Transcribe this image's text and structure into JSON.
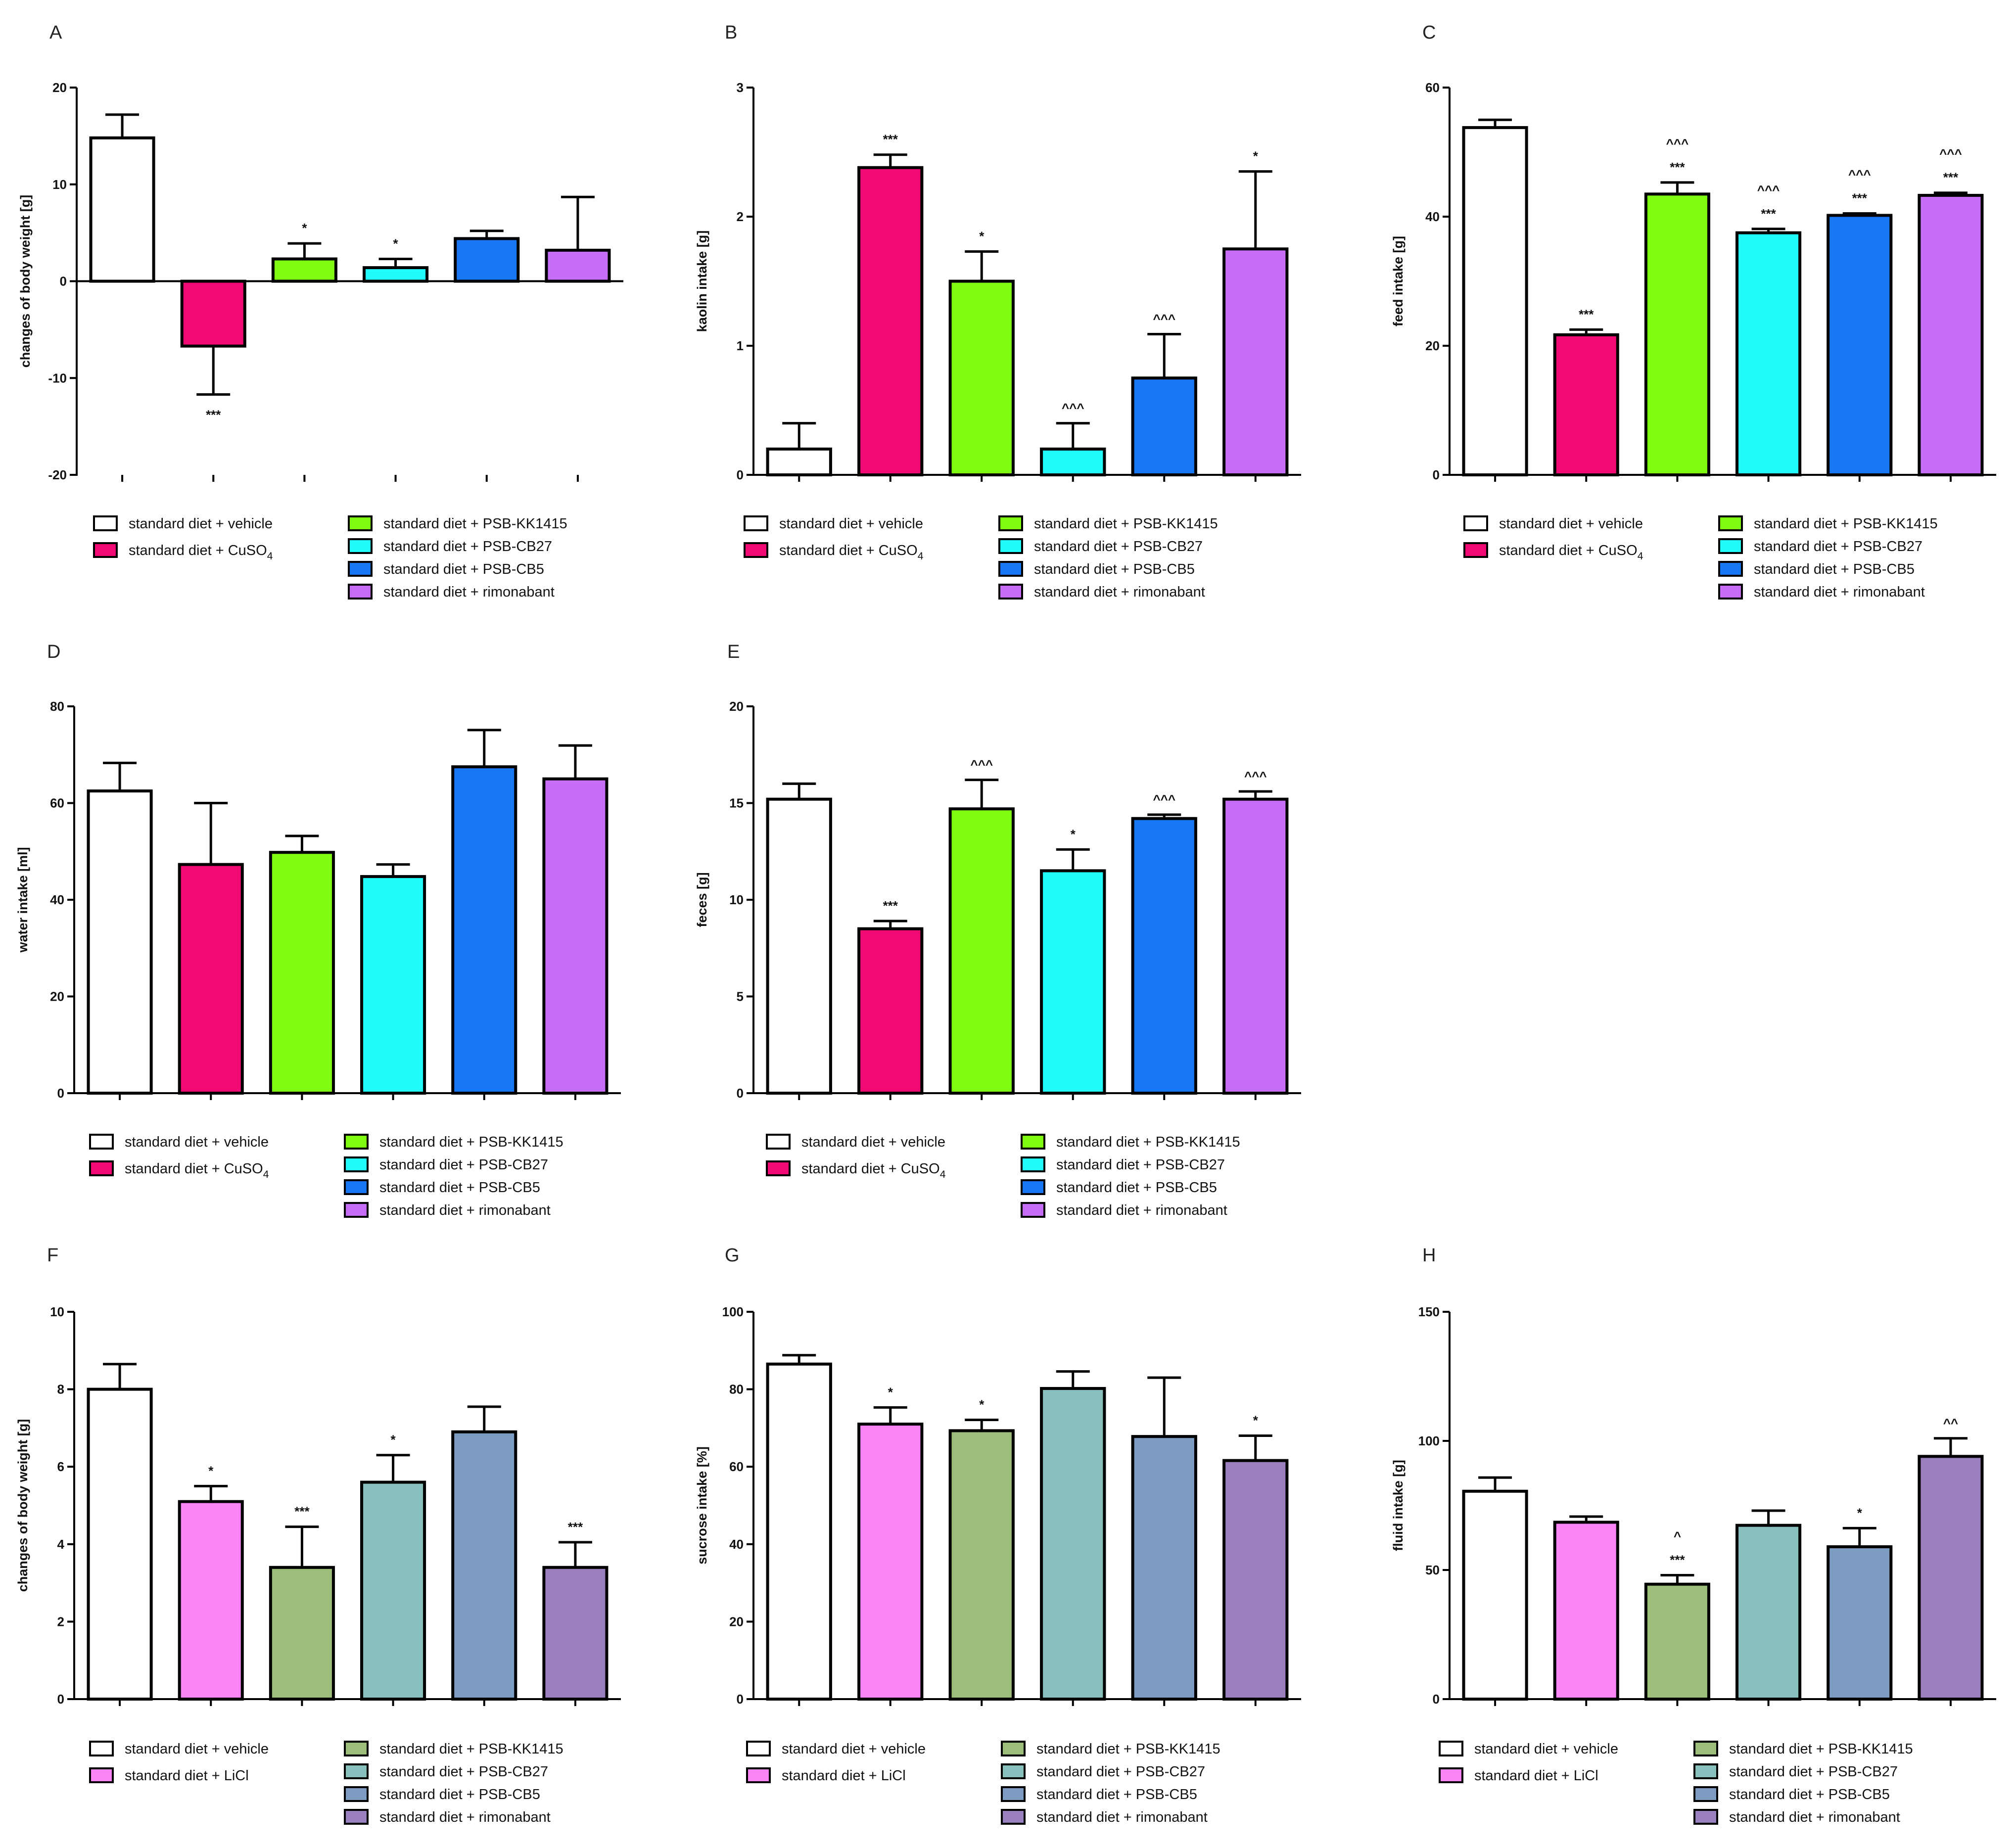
{
  "colors": {
    "vehicle": "#ffffff",
    "cuso4": "#f10a73",
    "kk1415": "#80fb12",
    "cb27": "#22fbfb",
    "cb5": "#1877f5",
    "rimonabant": "#c66ef7",
    "licl": "#fb84f7",
    "kk1415_muted": "#9dbd7b",
    "cb27_muted": "#89bfbd",
    "cb5_muted": "#7c9cc1",
    "rimonabant_muted": "#9a7fbd"
  },
  "chart_data": [
    {
      "panel": "A",
      "type": "bar",
      "ylabel": "changes of body weight  [g]",
      "ylim": [
        -20,
        20
      ],
      "yticks": [
        -20,
        -10,
        0,
        10,
        20
      ],
      "tick_labels": [
        "-20",
        "-10",
        "0",
        "10",
        "20"
      ],
      "categories": [
        "standard diet + vehicle",
        "standard diet + CuSO4",
        "standard diet + PSB-KK1415",
        "standard diet + PSB-CB27",
        "standard diet + PSB-CB5",
        "standard diet + rimonabant"
      ],
      "values": [
        14.8,
        -6.7,
        2.3,
        1.4,
        4.4,
        3.2
      ],
      "errors": [
        2.4,
        5.0,
        1.6,
        0.9,
        0.8,
        5.5
      ],
      "colors": [
        "vehicle",
        "cuso4",
        "kk1415",
        "cb27",
        "cb5",
        "rimonabant"
      ],
      "annotations": [
        [],
        [
          "***"
        ],
        [
          "*"
        ],
        [
          "*"
        ],
        [],
        []
      ],
      "legend": {
        "left": [
          {
            "text": "standard diet + vehicle",
            "color": "vehicle"
          },
          {
            "text": "standard diet + CuSO",
            "sub": "4",
            "color": "cuso4"
          }
        ],
        "right": [
          {
            "text": "standard diet + PSB-KK1415",
            "color": "kk1415"
          },
          {
            "text": "standard diet + PSB-CB27",
            "color": "cb27"
          },
          {
            "text": "standard diet + PSB-CB5",
            "color": "cb5"
          },
          {
            "text": "standard diet + rimonabant",
            "color": "rimonabant"
          }
        ]
      }
    },
    {
      "panel": "B",
      "type": "bar",
      "ylabel": "kaolin intake [g]",
      "ylim": [
        0,
        3
      ],
      "yticks": [
        0,
        1,
        2,
        3
      ],
      "tick_labels": [
        "0",
        "1",
        "2",
        "3"
      ],
      "categories": [
        "standard diet + vehicle",
        "standard diet + CuSO4",
        "standard diet + PSB-KK1415",
        "standard diet + PSB-CB27",
        "standard diet + PSB-CB5",
        "standard diet + rimonabant"
      ],
      "values": [
        0.2,
        2.38,
        1.5,
        0.2,
        0.75,
        1.75
      ],
      "errors": [
        0.2,
        0.1,
        0.23,
        0.2,
        0.34,
        0.6
      ],
      "colors": [
        "vehicle",
        "cuso4",
        "kk1415",
        "cb27",
        "cb5",
        "rimonabant"
      ],
      "annotations": [
        [],
        [
          "***"
        ],
        [
          "*"
        ],
        [
          "^^^"
        ],
        [
          "^^^"
        ],
        [
          "*"
        ]
      ],
      "legend": {
        "left": [
          {
            "text": "standard diet + vehicle",
            "color": "vehicle"
          },
          {
            "text": "standard diet + CuSO",
            "sub": "4",
            "color": "cuso4"
          }
        ],
        "right": [
          {
            "text": "standard diet + PSB-KK1415",
            "color": "kk1415"
          },
          {
            "text": "standard diet + PSB-CB27",
            "color": "cb27"
          },
          {
            "text": "standard diet + PSB-CB5",
            "color": "cb5"
          },
          {
            "text": "standard diet + rimonabant",
            "color": "rimonabant"
          }
        ]
      }
    },
    {
      "panel": "C",
      "type": "bar",
      "ylabel": "feed intake [g]",
      "ylim": [
        0,
        60
      ],
      "yticks": [
        0,
        20,
        40,
        60
      ],
      "tick_labels": [
        "0",
        "20",
        "40",
        "60"
      ],
      "categories": [
        "standard diet + vehicle",
        "standard diet + CuSO4",
        "standard diet + PSB-KK1415",
        "standard diet + PSB-CB27",
        "standard diet + PSB-CB5",
        "standard diet + rimonabant"
      ],
      "values": [
        53.8,
        21.7,
        43.5,
        37.5,
        40.2,
        43.3
      ],
      "errors": [
        1.2,
        0.8,
        1.8,
        0.6,
        0.3,
        0.4
      ],
      "colors": [
        "vehicle",
        "cuso4",
        "kk1415",
        "cb27",
        "cb5",
        "rimonabant"
      ],
      "annotations": [
        [],
        [
          "***"
        ],
        [
          "***",
          "^^^"
        ],
        [
          "***",
          "^^^"
        ],
        [
          "***",
          "^^^"
        ],
        [
          "***",
          "^^^"
        ]
      ],
      "legend": {
        "left": [
          {
            "text": "standard diet + vehicle",
            "color": "vehicle"
          },
          {
            "text": "standard diet + CuSO",
            "sub": "4",
            "color": "cuso4"
          }
        ],
        "right": [
          {
            "text": "standard diet + PSB-KK1415",
            "color": "kk1415"
          },
          {
            "text": "standard diet + PSB-CB27",
            "color": "cb27"
          },
          {
            "text": "standard diet + PSB-CB5",
            "color": "cb5"
          },
          {
            "text": "standard diet + rimonabant",
            "color": "rimonabant"
          }
        ]
      }
    },
    {
      "panel": "D",
      "type": "bar",
      "ylabel": "water intake [ml]",
      "ylim": [
        0,
        80
      ],
      "yticks": [
        0,
        20,
        40,
        60,
        80
      ],
      "tick_labels": [
        "0",
        "20",
        "40",
        "60",
        "80"
      ],
      "categories": [
        "standard diet + vehicle",
        "standard diet + CuSO4",
        "standard diet + PSB-KK1415",
        "standard diet + PSB-CB27",
        "standard diet + PSB-CB5",
        "standard diet + rimonabant"
      ],
      "values": [
        62.5,
        47.3,
        49.8,
        44.8,
        67.5,
        65
      ],
      "errors": [
        5.8,
        12.7,
        3.4,
        2.5,
        7.6,
        6.9
      ],
      "colors": [
        "vehicle",
        "cuso4",
        "kk1415",
        "cb27",
        "cb5",
        "rimonabant"
      ],
      "annotations": [
        [],
        [],
        [],
        [],
        [],
        []
      ],
      "legend": {
        "left": [
          {
            "text": "standard diet + vehicle",
            "color": "vehicle"
          },
          {
            "text": "standard diet + CuSO",
            "sub": "4",
            "color": "cuso4"
          }
        ],
        "right": [
          {
            "text": "standard diet + PSB-KK1415",
            "color": "kk1415"
          },
          {
            "text": "standard diet + PSB-CB27",
            "color": "cb27"
          },
          {
            "text": "standard diet + PSB-CB5",
            "color": "cb5"
          },
          {
            "text": "standard diet + rimonabant",
            "color": "rimonabant"
          }
        ]
      }
    },
    {
      "panel": "E",
      "type": "bar",
      "ylabel": "feces [g]",
      "ylim": [
        0,
        20
      ],
      "yticks": [
        0,
        5,
        10,
        15,
        20
      ],
      "tick_labels": [
        "0",
        "5",
        "10",
        "15",
        "20"
      ],
      "categories": [
        "standard diet + vehicle",
        "standard diet + CuSO4",
        "standard diet + PSB-KK1415",
        "standard diet + PSB-CB27",
        "standard diet + PSB-CB5",
        "standard diet + rimonabant"
      ],
      "values": [
        15.2,
        8.5,
        14.7,
        11.5,
        14.2,
        15.2
      ],
      "errors": [
        0.8,
        0.4,
        1.5,
        1.1,
        0.2,
        0.4
      ],
      "colors": [
        "vehicle",
        "cuso4",
        "kk1415",
        "cb27",
        "cb5",
        "rimonabant"
      ],
      "annotations": [
        [],
        [
          "***"
        ],
        [
          "^^^"
        ],
        [
          "*"
        ],
        [
          "^^^"
        ],
        [
          "^^^"
        ]
      ],
      "legend": {
        "left": [
          {
            "text": "standard diet + vehicle",
            "color": "vehicle"
          },
          {
            "text": "standard diet + CuSO",
            "sub": "4",
            "color": "cuso4"
          }
        ],
        "right": [
          {
            "text": "standard diet + PSB-KK1415",
            "color": "kk1415"
          },
          {
            "text": "standard diet + PSB-CB27",
            "color": "cb27"
          },
          {
            "text": "standard diet + PSB-CB5",
            "color": "cb5"
          },
          {
            "text": "standard diet + rimonabant",
            "color": "rimonabant"
          }
        ]
      }
    },
    {
      "panel": "F",
      "type": "bar",
      "ylabel": "changes of body weight  [g]",
      "ylim": [
        0,
        10
      ],
      "yticks": [
        0,
        2,
        4,
        6,
        8,
        10
      ],
      "tick_labels": [
        "0",
        "2",
        "4",
        "6",
        "8",
        "10"
      ],
      "categories": [
        "standard diet + vehicle",
        "standard diet + LiCl",
        "standard diet + PSB-KK1415",
        "standard diet + PSB-CB27",
        "standard diet + PSB-CB5",
        "standard diet + rimonabant"
      ],
      "values": [
        8.0,
        5.1,
        3.4,
        5.6,
        6.9,
        3.4
      ],
      "errors": [
        0.65,
        0.4,
        1.05,
        0.7,
        0.65,
        0.65
      ],
      "colors": [
        "vehicle",
        "licl",
        "kk1415_muted",
        "cb27_muted",
        "cb5_muted",
        "rimonabant_muted"
      ],
      "annotations": [
        [],
        [
          "*"
        ],
        [
          "***"
        ],
        [
          "*"
        ],
        [],
        [
          "***"
        ]
      ],
      "legend": {
        "left": [
          {
            "text": "standard diet + vehicle",
            "color": "vehicle"
          },
          {
            "text": "standard diet + LiCl",
            "color": "licl"
          }
        ],
        "right": [
          {
            "text": "standard diet + PSB-KK1415",
            "color": "kk1415_muted"
          },
          {
            "text": "standard diet + PSB-CB27",
            "color": "cb27_muted"
          },
          {
            "text": "standard diet + PSB-CB5",
            "color": "cb5_muted"
          },
          {
            "text": "standard diet + rimonabant",
            "color": "rimonabant_muted"
          }
        ]
      }
    },
    {
      "panel": "G",
      "type": "bar",
      "ylabel": "sucrose intake  [%]",
      "ylim": [
        0,
        100
      ],
      "yticks": [
        0,
        20,
        40,
        60,
        80,
        100
      ],
      "tick_labels": [
        "0",
        "20",
        "40",
        "60",
        "80",
        "100"
      ],
      "categories": [
        "standard diet + vehicle",
        "standard diet + LiCl",
        "standard diet + PSB-KK1415",
        "standard diet + PSB-CB27",
        "standard diet + PSB-CB5",
        "standard diet + rimonabant"
      ],
      "values": [
        86.5,
        71,
        69.3,
        80.2,
        67.8,
        61.6
      ],
      "errors": [
        2.3,
        4.3,
        2.8,
        4.4,
        15.2,
        6.4
      ],
      "colors": [
        "vehicle",
        "licl",
        "kk1415_muted",
        "cb27_muted",
        "cb5_muted",
        "rimonabant_muted"
      ],
      "annotations": [
        [],
        [
          "*"
        ],
        [
          "*"
        ],
        [],
        [],
        [
          "*"
        ]
      ],
      "legend": {
        "left": [
          {
            "text": "standard diet + vehicle",
            "color": "vehicle"
          },
          {
            "text": "standard diet + LiCl",
            "color": "licl"
          }
        ],
        "right": [
          {
            "text": "standard diet + PSB-KK1415",
            "color": "kk1415_muted"
          },
          {
            "text": "standard diet + PSB-CB27",
            "color": "cb27_muted"
          },
          {
            "text": "standard diet + PSB-CB5",
            "color": "cb5_muted"
          },
          {
            "text": "standard diet + rimonabant",
            "color": "rimonabant_muted"
          }
        ]
      }
    },
    {
      "panel": "H",
      "type": "bar",
      "ylabel": "fluid intake [g]",
      "ylim": [
        0,
        150
      ],
      "yticks": [
        0,
        50,
        100,
        150
      ],
      "tick_labels": [
        "0",
        "50",
        "100",
        "150"
      ],
      "categories": [
        "standard diet + vehicle",
        "standard diet + LiCl",
        "standard diet + PSB-KK1415",
        "standard diet + PSB-CB27",
        "standard diet + PSB-CB5",
        "standard diet + rimonabant"
      ],
      "values": [
        80.5,
        68.5,
        44.5,
        67.3,
        59,
        94
      ],
      "errors": [
        5.3,
        2.2,
        3.5,
        5.7,
        7.2,
        7
      ],
      "colors": [
        "vehicle",
        "licl",
        "kk1415_muted",
        "cb27_muted",
        "cb5_muted",
        "rimonabant_muted"
      ],
      "annotations": [
        [],
        [],
        [
          "***",
          "^"
        ],
        [],
        [
          "*"
        ],
        [
          "^^"
        ]
      ],
      "legend": {
        "left": [
          {
            "text": "standard diet + vehicle",
            "color": "vehicle"
          },
          {
            "text": "standard diet + LiCl",
            "color": "licl"
          }
        ],
        "right": [
          {
            "text": "standard diet + PSB-KK1415",
            "color": "kk1415_muted"
          },
          {
            "text": "standard diet + PSB-CB27",
            "color": "cb27_muted"
          },
          {
            "text": "standard diet + PSB-CB5",
            "color": "cb5_muted"
          },
          {
            "text": "standard diet + rimonabant",
            "color": "rimonabant_muted"
          }
        ]
      }
    }
  ]
}
